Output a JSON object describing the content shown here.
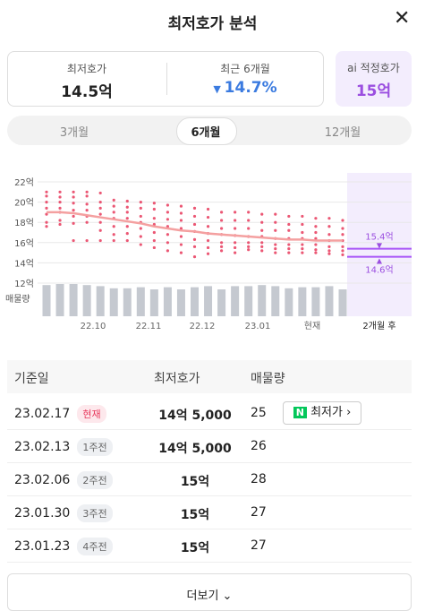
{
  "header": {
    "title": "최저호가 분석"
  },
  "summary": {
    "lowest_label": "최저호가",
    "lowest_value": "14.5억",
    "recent_label": "최근 6개월",
    "recent_value": "14.7%",
    "ai_label": "ai 적정호가",
    "ai_value": "15억"
  },
  "tabs": [
    "3개월",
    "6개월",
    "12개월"
  ],
  "chart": {
    "ylim": [
      12,
      22
    ],
    "yticks": [
      {
        "value": 22,
        "label": "22억"
      },
      {
        "value": 20,
        "label": "20억"
      },
      {
        "value": 18,
        "label": "18억"
      },
      {
        "value": 16,
        "label": "16억"
      },
      {
        "value": 14,
        "label": "14억"
      },
      {
        "value": 12,
        "label": "12억"
      }
    ],
    "volume_label": "매물량",
    "x_labels": [
      "22.10",
      "22.11",
      "22.12",
      "23.01",
      "현재",
      "2개월 후"
    ],
    "dots": [
      [
        21,
        20.6,
        20,
        19.4,
        18.8,
        18,
        17.6
      ],
      [
        21,
        20.5,
        20,
        19.4,
        19,
        18.2,
        17.8
      ],
      [
        21,
        20.5,
        19.9,
        19.2,
        18.6,
        17.9,
        16.2
      ],
      [
        21,
        20.6,
        19.8,
        19.2,
        18.6,
        18,
        16.2
      ],
      [
        20.9,
        20,
        19.4,
        18.8,
        18,
        17.2,
        16.2
      ],
      [
        20.2,
        19.6,
        19,
        18.4,
        17.6,
        16.8,
        16.2
      ],
      [
        20.1,
        19.5,
        19,
        18.4,
        17.6,
        16.9,
        16.2
      ],
      [
        20,
        19.4,
        18.6,
        18,
        17.4,
        16.6,
        15.8
      ],
      [
        19.9,
        19.3,
        18.4,
        17.8,
        17,
        16.2,
        15.5
      ],
      [
        19.7,
        19,
        18.3,
        17.6,
        16.8,
        16,
        15.2
      ],
      [
        19.6,
        18.9,
        18.2,
        17.4,
        16.6,
        15.8,
        15
      ],
      [
        19.4,
        18.6,
        17.8,
        17.1,
        16.3,
        15.6,
        14.6
      ],
      [
        19.3,
        18.5,
        17.6,
        16.9,
        16.2,
        15.5,
        14.9
      ],
      [
        19,
        18.2,
        17.4,
        16.8,
        16,
        15.6,
        15.2
      ],
      [
        19,
        18.2,
        17.4,
        16.7,
        16,
        15.5,
        15
      ],
      [
        19,
        18.2,
        17.4,
        16.6,
        16,
        15.6,
        15.3
      ],
      [
        18.8,
        18,
        17.2,
        16.6,
        16,
        15.6,
        15.2
      ],
      [
        18.8,
        18,
        17.2,
        16.4,
        15.8,
        15.4,
        15
      ],
      [
        18.6,
        17.8,
        17.2,
        16.4,
        15.8,
        15.4,
        15
      ],
      [
        18.6,
        17.8,
        17,
        16.4,
        15.8,
        15.4,
        15
      ],
      [
        18.4,
        17.6,
        17,
        16.4,
        15.8,
        15.3,
        15
      ],
      [
        18.4,
        17.6,
        16.8,
        16.2,
        15.6,
        15.2,
        14.9
      ],
      [
        18.2,
        17.4,
        16.8,
        16.2,
        15.6,
        15.2,
        14.8
      ]
    ],
    "trend": [
      19,
      19,
      18.9,
      18.7,
      18.5,
      18.3,
      18.1,
      17.9,
      17.6,
      17.4,
      17.2,
      17.1,
      16.9,
      16.8,
      16.7,
      16.6,
      16.5,
      16.4,
      16.3,
      16.3,
      16.2,
      16.2,
      16.2
    ],
    "volume": [
      29,
      30,
      30,
      29,
      28,
      26,
      26,
      27,
      25,
      27,
      25,
      27,
      28,
      25,
      28,
      28,
      29,
      28,
      26,
      27,
      27,
      28,
      25
    ],
    "forecast": [
      {
        "value": 15.4,
        "label": "15.4억"
      },
      {
        "value": 14.6,
        "label": "14.6억"
      }
    ]
  },
  "table": {
    "headers": [
      "기준일",
      "최저호가",
      "매물량"
    ],
    "rows": [
      [
        "23.02.17",
        "현재",
        "14억 5,000",
        "25"
      ],
      [
        "23.02.13",
        "1주전",
        "14억 5,000",
        "26"
      ],
      [
        "23.02.06",
        "2주전",
        "15억",
        "28"
      ],
      [
        "23.01.30",
        "3주전",
        "15억",
        "27"
      ],
      [
        "23.01.23",
        "4주전",
        "15억",
        "27"
      ]
    ],
    "button": "최저가"
  },
  "more": "더보기"
}
